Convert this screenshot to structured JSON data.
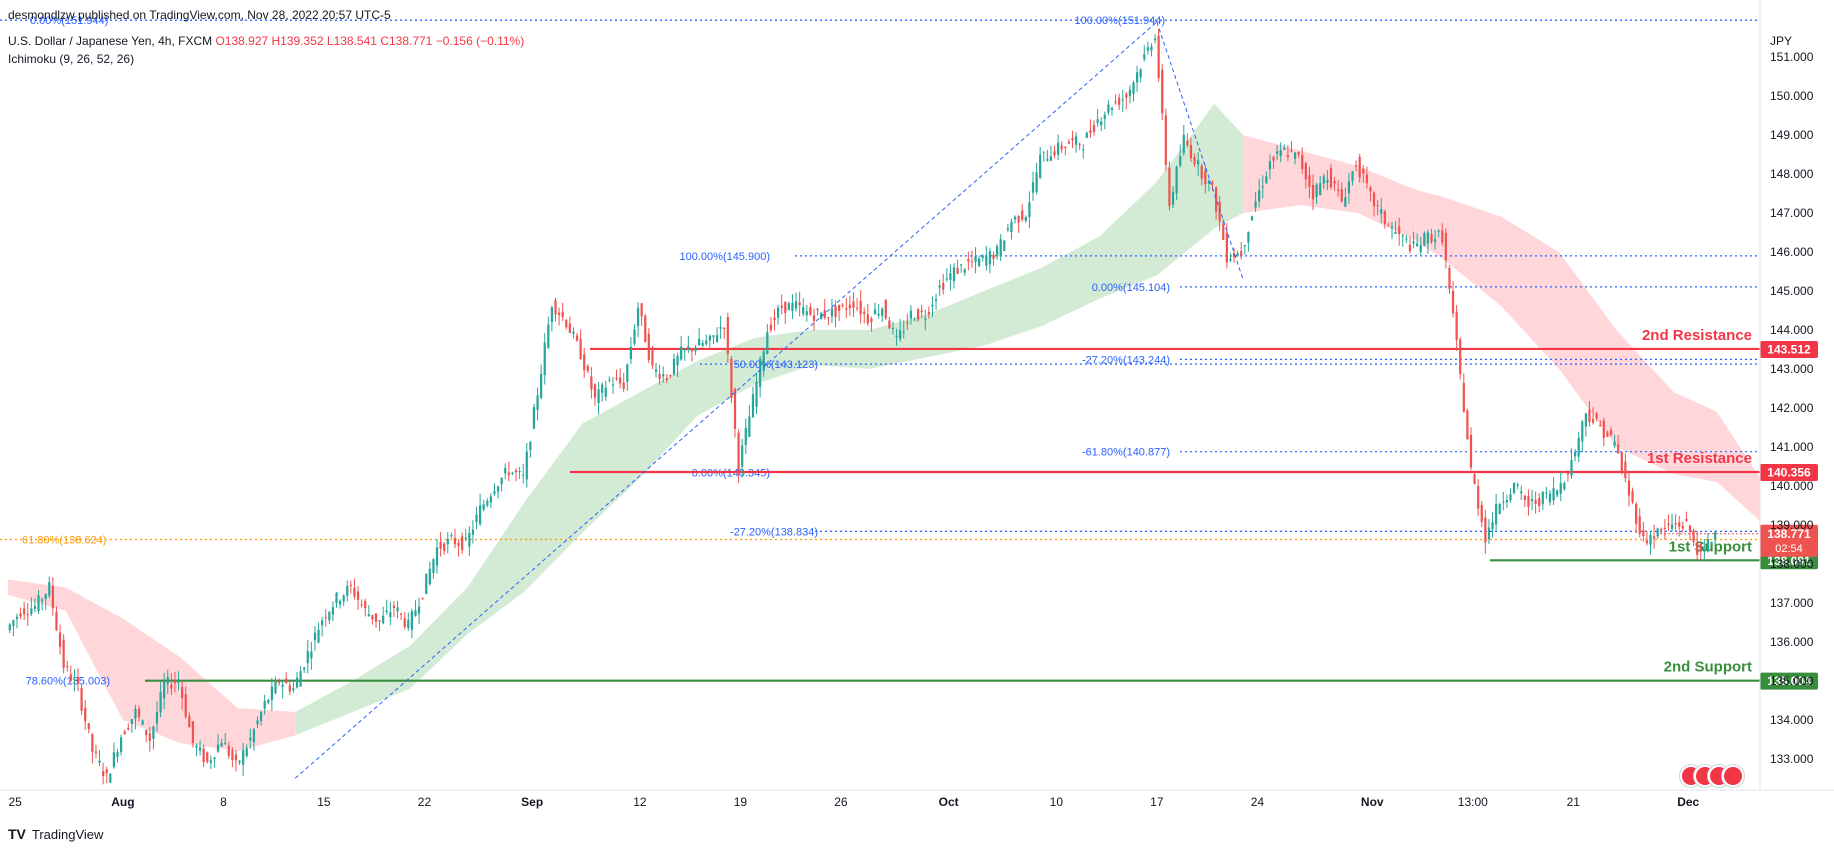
{
  "header": {
    "publisher": "desmondlzw published on TradingView.com, Nov 28, 2022 20:57 UTC-5",
    "symbol": "U.S. Dollar / Japanese Yen, 4h, FXCM",
    "ohlc": {
      "o": "O138.927",
      "h": "H139.352",
      "l": "L138.541",
      "c": "C138.771",
      "chg": "−0.156 (−0.11%)"
    },
    "indicator": "Ichimoku (9, 26, 52, 26)"
  },
  "footer": {
    "brand": "TradingView"
  },
  "colors": {
    "bull": "#26a69a",
    "bear": "#ef5350",
    "resistance": "#f23645",
    "support": "#388e3c",
    "fib": "#2962ff",
    "orange": "#ff9800",
    "cloud_bull": "#c8e6c9",
    "cloud_bear": "#ffcdd2",
    "axis_text": "#131722"
  },
  "chart_data": {
    "type": "candlestick",
    "timeframe": "4h",
    "currency": "JPY",
    "ylim": [
      132.2,
      152.0
    ],
    "x_ticks": [
      "25",
      "Aug",
      "8",
      "15",
      "22",
      "Sep",
      "12",
      "19",
      "26",
      "Oct",
      "10",
      "17",
      "24",
      "Nov",
      "13:00",
      "21",
      "Dec"
    ],
    "x_tick_pos": [
      0.5,
      8,
      15,
      22,
      29,
      36.5,
      44,
      51,
      58,
      65.5,
      73,
      80,
      87,
      95,
      102,
      109,
      117
    ],
    "y_ticks": [
      133,
      134,
      135,
      136,
      137,
      138,
      139,
      140,
      141,
      142,
      143,
      144,
      145,
      146,
      147,
      148,
      149,
      150,
      151
    ],
    "y_unit_label": "JPY",
    "price_path": [
      [
        0,
        136.3
      ],
      [
        1,
        136.8
      ],
      [
        2,
        136.9
      ],
      [
        3,
        137.4
      ],
      [
        4,
        135.4
      ],
      [
        5,
        134.8
      ],
      [
        6,
        133.2
      ],
      [
        7,
        132.5
      ],
      [
        8,
        133.6
      ],
      [
        9,
        134.2
      ],
      [
        10,
        133.5
      ],
      [
        11,
        134.9
      ],
      [
        12,
        135.0
      ],
      [
        13,
        133.4
      ],
      [
        14,
        132.9
      ],
      [
        15,
        133.5
      ],
      [
        16,
        132.8
      ],
      [
        17,
        133.5
      ],
      [
        18,
        134.4
      ],
      [
        19,
        135.0
      ],
      [
        20,
        134.8
      ],
      [
        21,
        135.7
      ],
      [
        22,
        136.6
      ],
      [
        23,
        137.1
      ],
      [
        24,
        137.4
      ],
      [
        25,
        136.8
      ],
      [
        26,
        136.5
      ],
      [
        27,
        136.9
      ],
      [
        28,
        136.4
      ],
      [
        29,
        137.3
      ],
      [
        30,
        138.4
      ],
      [
        31,
        138.6
      ],
      [
        32,
        138.5
      ],
      [
        33,
        139.4
      ],
      [
        34,
        140.0
      ],
      [
        35,
        140.4
      ],
      [
        36,
        140.2
      ],
      [
        37,
        142.4
      ],
      [
        38,
        144.7
      ],
      [
        39,
        144.2
      ],
      [
        40,
        143.4
      ],
      [
        41,
        142.2
      ],
      [
        42,
        142.7
      ],
      [
        43,
        142.6
      ],
      [
        44,
        144.6
      ],
      [
        45,
        143.0
      ],
      [
        46,
        142.8
      ],
      [
        47,
        143.4
      ],
      [
        48,
        143.6
      ],
      [
        49,
        143.7
      ],
      [
        50,
        144.2
      ],
      [
        51,
        140.5
      ],
      [
        52,
        142.2
      ],
      [
        53,
        144.0
      ],
      [
        54,
        144.6
      ],
      [
        55,
        144.6
      ],
      [
        56,
        144.4
      ],
      [
        57,
        144.4
      ],
      [
        58,
        144.5
      ],
      [
        59,
        144.7
      ],
      [
        60,
        144.3
      ],
      [
        61,
        144.6
      ],
      [
        62,
        143.7
      ],
      [
        63,
        144.4
      ],
      [
        64,
        144.4
      ],
      [
        65,
        145.1
      ],
      [
        66,
        145.5
      ],
      [
        67,
        145.7
      ],
      [
        68,
        145.8
      ],
      [
        69,
        146.0
      ],
      [
        70,
        146.8
      ],
      [
        71,
        147.0
      ],
      [
        72,
        148.4
      ],
      [
        73,
        148.6
      ],
      [
        74,
        148.8
      ],
      [
        75,
        148.8
      ],
      [
        76,
        149.4
      ],
      [
        77,
        149.8
      ],
      [
        78,
        150.0
      ],
      [
        79,
        150.8
      ],
      [
        80,
        151.6
      ],
      [
        81,
        147.2
      ],
      [
        82,
        148.9
      ],
      [
        83,
        148.2
      ],
      [
        84,
        147.6
      ],
      [
        85,
        145.9
      ],
      [
        86,
        146.0
      ],
      [
        87,
        147.3
      ],
      [
        88,
        148.3
      ],
      [
        89,
        148.6
      ],
      [
        90,
        148.4
      ],
      [
        91,
        147.5
      ],
      [
        92,
        148.0
      ],
      [
        93,
        147.3
      ],
      [
        94,
        148.3
      ],
      [
        95,
        147.4
      ],
      [
        96,
        146.8
      ],
      [
        97,
        146.4
      ],
      [
        98,
        146.1
      ],
      [
        99,
        146.4
      ],
      [
        100,
        146.4
      ],
      [
        101,
        143.6
      ],
      [
        102,
        140.4
      ],
      [
        103,
        138.7
      ],
      [
        104,
        139.6
      ],
      [
        105,
        140.0
      ],
      [
        106,
        139.5
      ],
      [
        107,
        139.7
      ],
      [
        108,
        139.9
      ],
      [
        109,
        140.6
      ],
      [
        110,
        141.9
      ],
      [
        111,
        141.5
      ],
      [
        112,
        141.1
      ],
      [
        113,
        139.8
      ],
      [
        114,
        138.6
      ],
      [
        115,
        138.8
      ],
      [
        116,
        139.0
      ],
      [
        117,
        139.0
      ],
      [
        118,
        138.2
      ],
      [
        119,
        138.8
      ]
    ],
    "ichimoku_cloud": [
      [
        0,
        137.2,
        137.6,
        "bear"
      ],
      [
        4,
        136.8,
        137.4,
        "bear"
      ],
      [
        8,
        134.0,
        136.6,
        "bear"
      ],
      [
        12,
        133.4,
        135.6,
        "bear"
      ],
      [
        16,
        133.2,
        134.3,
        "bear"
      ],
      [
        20,
        133.6,
        134.2,
        "bull"
      ],
      [
        24,
        134.2,
        135.0,
        "bull"
      ],
      [
        28,
        134.8,
        135.9,
        "bull"
      ],
      [
        32,
        136.2,
        137.4,
        "bull"
      ],
      [
        36,
        137.3,
        139.6,
        "bull"
      ],
      [
        40,
        138.8,
        141.6,
        "bull"
      ],
      [
        44,
        140.2,
        142.4,
        "bull"
      ],
      [
        48,
        141.8,
        143.2,
        "bull"
      ],
      [
        52,
        142.6,
        143.8,
        "bull"
      ],
      [
        56,
        143.1,
        144.0,
        "bull"
      ],
      [
        60,
        143.0,
        144.0,
        "bull"
      ],
      [
        64,
        143.3,
        144.4,
        "bull"
      ],
      [
        68,
        143.6,
        145.0,
        "bull"
      ],
      [
        72,
        144.1,
        145.6,
        "bull"
      ],
      [
        76,
        144.8,
        146.4,
        "bull"
      ],
      [
        80,
        145.4,
        147.8,
        "bull"
      ],
      [
        84,
        146.6,
        149.8,
        "bull"
      ],
      [
        86,
        147.0,
        149.0,
        "bear"
      ],
      [
        90,
        147.2,
        148.6,
        "bear"
      ],
      [
        94,
        147.0,
        148.2,
        "bear"
      ],
      [
        98,
        146.3,
        147.6,
        "bear"
      ],
      [
        100,
        145.8,
        147.4,
        "bear"
      ],
      [
        104,
        144.6,
        146.9,
        "bear"
      ],
      [
        108,
        143.0,
        146.0,
        "bear"
      ],
      [
        112,
        141.0,
        144.0,
        "bear"
      ],
      [
        116,
        140.3,
        142.4,
        "bear"
      ],
      [
        119,
        140.1,
        141.9,
        "bear"
      ],
      [
        122,
        139.1,
        140.2,
        "bear"
      ]
    ],
    "horizontal_levels": [
      {
        "label": "2nd Resistance",
        "value": 143.512,
        "tag": "143.512",
        "kind": "resistance"
      },
      {
        "label": "1st Resistance",
        "value": 140.356,
        "tag": "140.356",
        "kind": "resistance"
      },
      {
        "label": "1st Support",
        "value": 138.091,
        "tag": "138.091",
        "kind": "support"
      },
      {
        "label": "2nd Support",
        "value": 135.004,
        "tag": "135.004",
        "kind": "support"
      }
    ],
    "current_price": {
      "tag": "138.771",
      "countdown": "02:54",
      "value": 138.771
    },
    "fib_levels": [
      {
        "text": "0.00%(151.944)",
        "value": 151.944
      },
      {
        "text": "100.00%(151.944)",
        "value": 151.944
      },
      {
        "text": "100.00%(145.900)",
        "value": 145.9
      },
      {
        "text": "0.00%(145.104)",
        "value": 145.104
      },
      {
        "text": "50.00%(143.123)",
        "value": 143.123
      },
      {
        "text": "-27.20%(143.244)",
        "value": 143.244
      },
      {
        "text": "-61.80%(140.877)",
        "value": 140.877
      },
      {
        "text": "0.00%(140.345)",
        "value": 140.345
      },
      {
        "text": "-27.20%(138.834)",
        "value": 138.834
      },
      {
        "text": "61.80%(138.624)",
        "value": 138.624
      },
      {
        "text": "78.60%(135.003)",
        "value": 135.003
      }
    ]
  }
}
